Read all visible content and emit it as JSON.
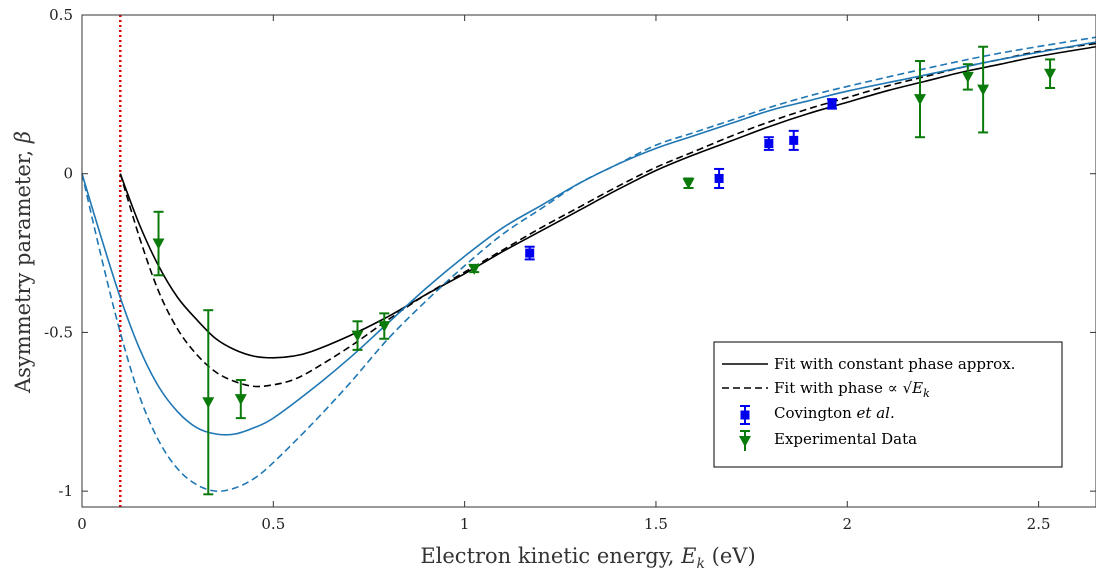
{
  "chart_data": {
    "type": "line",
    "xlabel_prefix": "Electron kinetic energy, ",
    "xlabel_var": "E",
    "xlabel_sub": "k",
    "xlabel_suffix": " (eV)",
    "ylabel_text": "Asymmetry parameter, ",
    "ylabel_var": "β",
    "xlim": [
      0,
      2.65
    ],
    "ylim": [
      -1.05,
      0.5
    ],
    "xticks": [
      0,
      0.5,
      1,
      1.5,
      2,
      2.5
    ],
    "xtick_labels": [
      "0",
      "0.5",
      "1",
      "1.5",
      "2",
      "2.5"
    ],
    "yticks": [
      -1,
      -0.5,
      0,
      0.5
    ],
    "ytick_labels": [
      "-1",
      "-0.5",
      "0",
      "0.5"
    ],
    "grid": false,
    "threshold_line": {
      "x": 0.1,
      "color": "#dd0000",
      "style": "dotted"
    },
    "legend": {
      "placement": "bottom-right",
      "fit_constant_label": "Fit with constant phase approx.",
      "fit_sqrt_label_prefix": "Fit with phase ∝ ",
      "fit_sqrt_label_var": "√E",
      "fit_sqrt_label_sub": "k",
      "covington_label_prefix": "Covington ",
      "covington_label_italic": "et al.",
      "experimental_label": "Experimental Data"
    },
    "series": [
      {
        "name": "Fit with constant phase approx.",
        "color": "#000000",
        "dash": "solid",
        "x": [
          0.1,
          0.15,
          0.2,
          0.25,
          0.3,
          0.35,
          0.4,
          0.45,
          0.5,
          0.55,
          0.6,
          0.7,
          0.8,
          0.9,
          1.0,
          1.1,
          1.2,
          1.3,
          1.4,
          1.5,
          1.6,
          1.7,
          1.8,
          1.9,
          2.0,
          2.1,
          2.2,
          2.3,
          2.4,
          2.5,
          2.65
        ],
        "y": [
          0.0,
          -0.16,
          -0.29,
          -0.39,
          -0.46,
          -0.52,
          -0.555,
          -0.575,
          -0.58,
          -0.575,
          -0.56,
          -0.51,
          -0.45,
          -0.38,
          -0.315,
          -0.245,
          -0.18,
          -0.115,
          -0.05,
          0.01,
          0.06,
          0.105,
          0.15,
          0.19,
          0.225,
          0.26,
          0.29,
          0.32,
          0.345,
          0.37,
          0.4
        ]
      },
      {
        "name": "Fit with phase ∝ √E_k",
        "color": "#000000",
        "dash": "dashed",
        "x": [
          0.1,
          0.15,
          0.2,
          0.25,
          0.3,
          0.35,
          0.4,
          0.45,
          0.5,
          0.55,
          0.6,
          0.7,
          0.8,
          0.9,
          1.0,
          1.1,
          1.2,
          1.3,
          1.4,
          1.5,
          1.6,
          1.7,
          1.8,
          1.9,
          2.0,
          2.1,
          2.2,
          2.3,
          2.4,
          2.5,
          2.65
        ],
        "y": [
          0.0,
          -0.2,
          -0.37,
          -0.49,
          -0.57,
          -0.625,
          -0.655,
          -0.67,
          -0.665,
          -0.65,
          -0.62,
          -0.545,
          -0.46,
          -0.38,
          -0.31,
          -0.24,
          -0.17,
          -0.105,
          -0.04,
          0.02,
          0.07,
          0.12,
          0.165,
          0.205,
          0.24,
          0.275,
          0.305,
          0.335,
          0.36,
          0.385,
          0.41
        ]
      },
      {
        "color": "#1f77b4",
        "dash": "solid",
        "x": [
          0,
          0.05,
          0.1,
          0.15,
          0.2,
          0.25,
          0.3,
          0.35,
          0.4,
          0.45,
          0.5,
          0.6,
          0.7,
          0.8,
          0.9,
          1.0,
          1.1,
          1.2,
          1.3,
          1.4,
          1.5,
          1.6,
          1.7,
          1.8,
          1.9,
          2.0,
          2.2,
          2.4,
          2.65
        ],
        "y": [
          0.0,
          -0.2,
          -0.39,
          -0.55,
          -0.67,
          -0.75,
          -0.8,
          -0.82,
          -0.82,
          -0.8,
          -0.77,
          -0.68,
          -0.58,
          -0.47,
          -0.36,
          -0.26,
          -0.17,
          -0.1,
          -0.03,
          0.03,
          0.08,
          0.12,
          0.16,
          0.2,
          0.23,
          0.26,
          0.31,
          0.36,
          0.415
        ]
      },
      {
        "color": "#1f77b4",
        "dash": "dashed",
        "x": [
          0,
          0.05,
          0.1,
          0.15,
          0.2,
          0.25,
          0.3,
          0.35,
          0.4,
          0.45,
          0.5,
          0.6,
          0.7,
          0.8,
          0.9,
          1.0,
          1.1,
          1.2,
          1.3,
          1.4,
          1.5,
          1.6,
          1.7,
          1.8,
          1.9,
          2.0,
          2.2,
          2.4,
          2.65
        ],
        "y": [
          0.0,
          -0.26,
          -0.5,
          -0.7,
          -0.84,
          -0.93,
          -0.98,
          -1.0,
          -0.99,
          -0.96,
          -0.91,
          -0.79,
          -0.66,
          -0.52,
          -0.4,
          -0.29,
          -0.19,
          -0.11,
          -0.03,
          0.03,
          0.09,
          0.13,
          0.17,
          0.21,
          0.245,
          0.275,
          0.33,
          0.38,
          0.43
        ]
      }
    ],
    "covington": {
      "name": "Covington et al.",
      "color": "#0000ee",
      "x": [
        1.17,
        1.665,
        1.795,
        1.86,
        1.96
      ],
      "y": [
        -0.25,
        -0.015,
        0.095,
        0.105,
        0.22
      ],
      "err": [
        0.02,
        0.03,
        0.02,
        0.03,
        0.015
      ]
    },
    "experimental": {
      "name": "Experimental Data",
      "color": "#0a7a0a",
      "x": [
        0.2,
        0.33,
        0.415,
        0.72,
        0.79,
        1.025,
        1.585,
        2.19,
        2.315,
        2.355,
        2.53
      ],
      "y": [
        -0.22,
        -0.72,
        -0.71,
        -0.51,
        -0.48,
        -0.3,
        -0.03,
        0.235,
        0.305,
        0.265,
        0.315
      ],
      "err": [
        0.1,
        0.29,
        0.06,
        0.045,
        0.04,
        0.01,
        0.015,
        0.12,
        0.04,
        0.135,
        0.045
      ]
    }
  }
}
